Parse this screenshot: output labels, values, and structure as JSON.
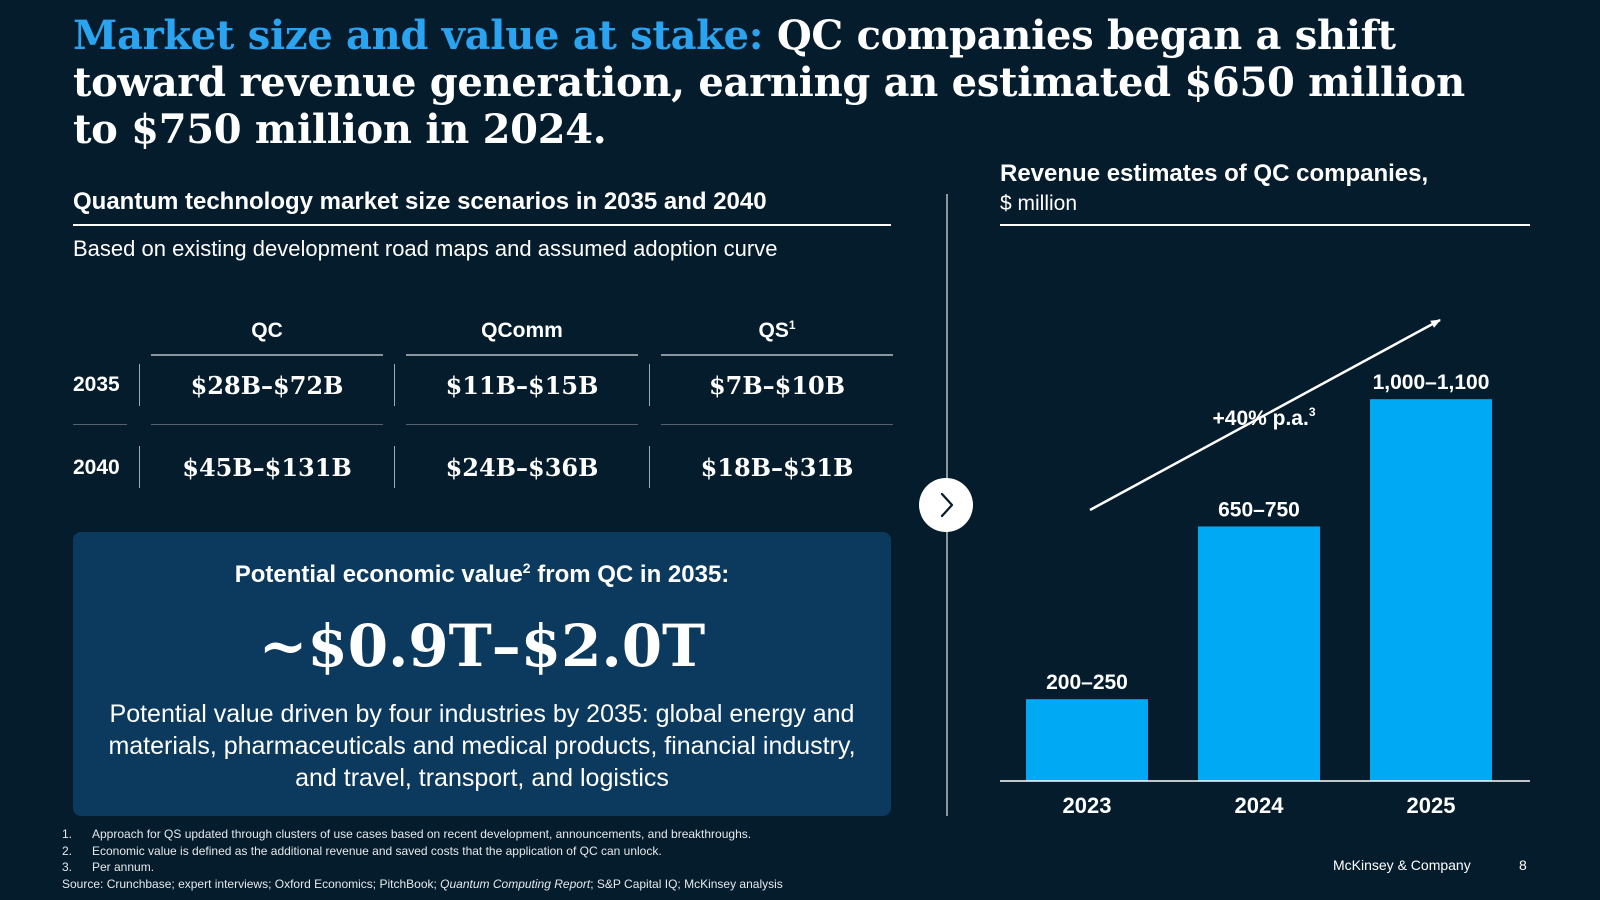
{
  "headline": {
    "accent": "Market size and value at stake:",
    "rest": "QC companies began a shift toward revenue generation, earning an estimated $650 million to $750 million in 2024."
  },
  "left": {
    "title": "Quantum technology market size scenarios in 2035 and 2040",
    "subtitle": "Based on existing development road maps and assumed adoption curve",
    "columns": [
      {
        "label": "QC",
        "sup": ""
      },
      {
        "label": "QComm",
        "sup": ""
      },
      {
        "label": "QS",
        "sup": "1"
      }
    ],
    "rows": [
      {
        "year": "2035",
        "cells": [
          "$28B–$72B",
          "$11B–$15B",
          "$7B–$10B"
        ]
      },
      {
        "year": "2040",
        "cells": [
          "$45B–$131B",
          "$24B–$36B",
          "$18B–$31B"
        ]
      }
    ]
  },
  "value_box": {
    "title_pre": "Potential economic value",
    "title_sup": "2",
    "title_post": " from QC in 2035:",
    "value": "~$0.9T–$2.0T",
    "description": "Potential value driven by four industries by 2035: global energy and materials, pharmaceuticals and medical products, financial industry, and travel, transport, and logistics"
  },
  "nav": {
    "icon": "chevron-right-icon"
  },
  "chart_data": {
    "type": "bar",
    "title": "Revenue estimates of QC companies,",
    "unit": "$ million",
    "categories": [
      "2023",
      "2024",
      "2025"
    ],
    "values": [
      [
        200,
        250
      ],
      [
        650,
        750
      ],
      [
        1000,
        1100
      ]
    ],
    "value_labels": [
      "200–250",
      "650–750",
      "1,000–1,100"
    ],
    "annotation": "+40% p.a.",
    "annotation_sup": "3",
    "bar_color": "#00a9f4",
    "ylim": [
      0,
      1100
    ]
  },
  "footnotes": [
    {
      "num": "1.",
      "text": "Approach for QS updated through clusters of use cases based on recent development, announcements, and breakthroughs."
    },
    {
      "num": "2.",
      "text": "Economic value is defined as the additional revenue and saved costs that the application of QC can unlock."
    },
    {
      "num": "3.",
      "text": "Per annum."
    }
  ],
  "source": {
    "pre": "Source: Crunchbase; expert interviews; Oxford Economics; PitchBook; ",
    "italic": "Quantum Computing Report",
    "post": "; S&P Capital IQ; McKinsey analysis"
  },
  "brand": "McKinsey & Company",
  "page_number": "8",
  "colors": {
    "background": "#051c2c",
    "accent": "#2aa4f0",
    "bar": "#00a9f4",
    "box": "#0c3a5e"
  }
}
